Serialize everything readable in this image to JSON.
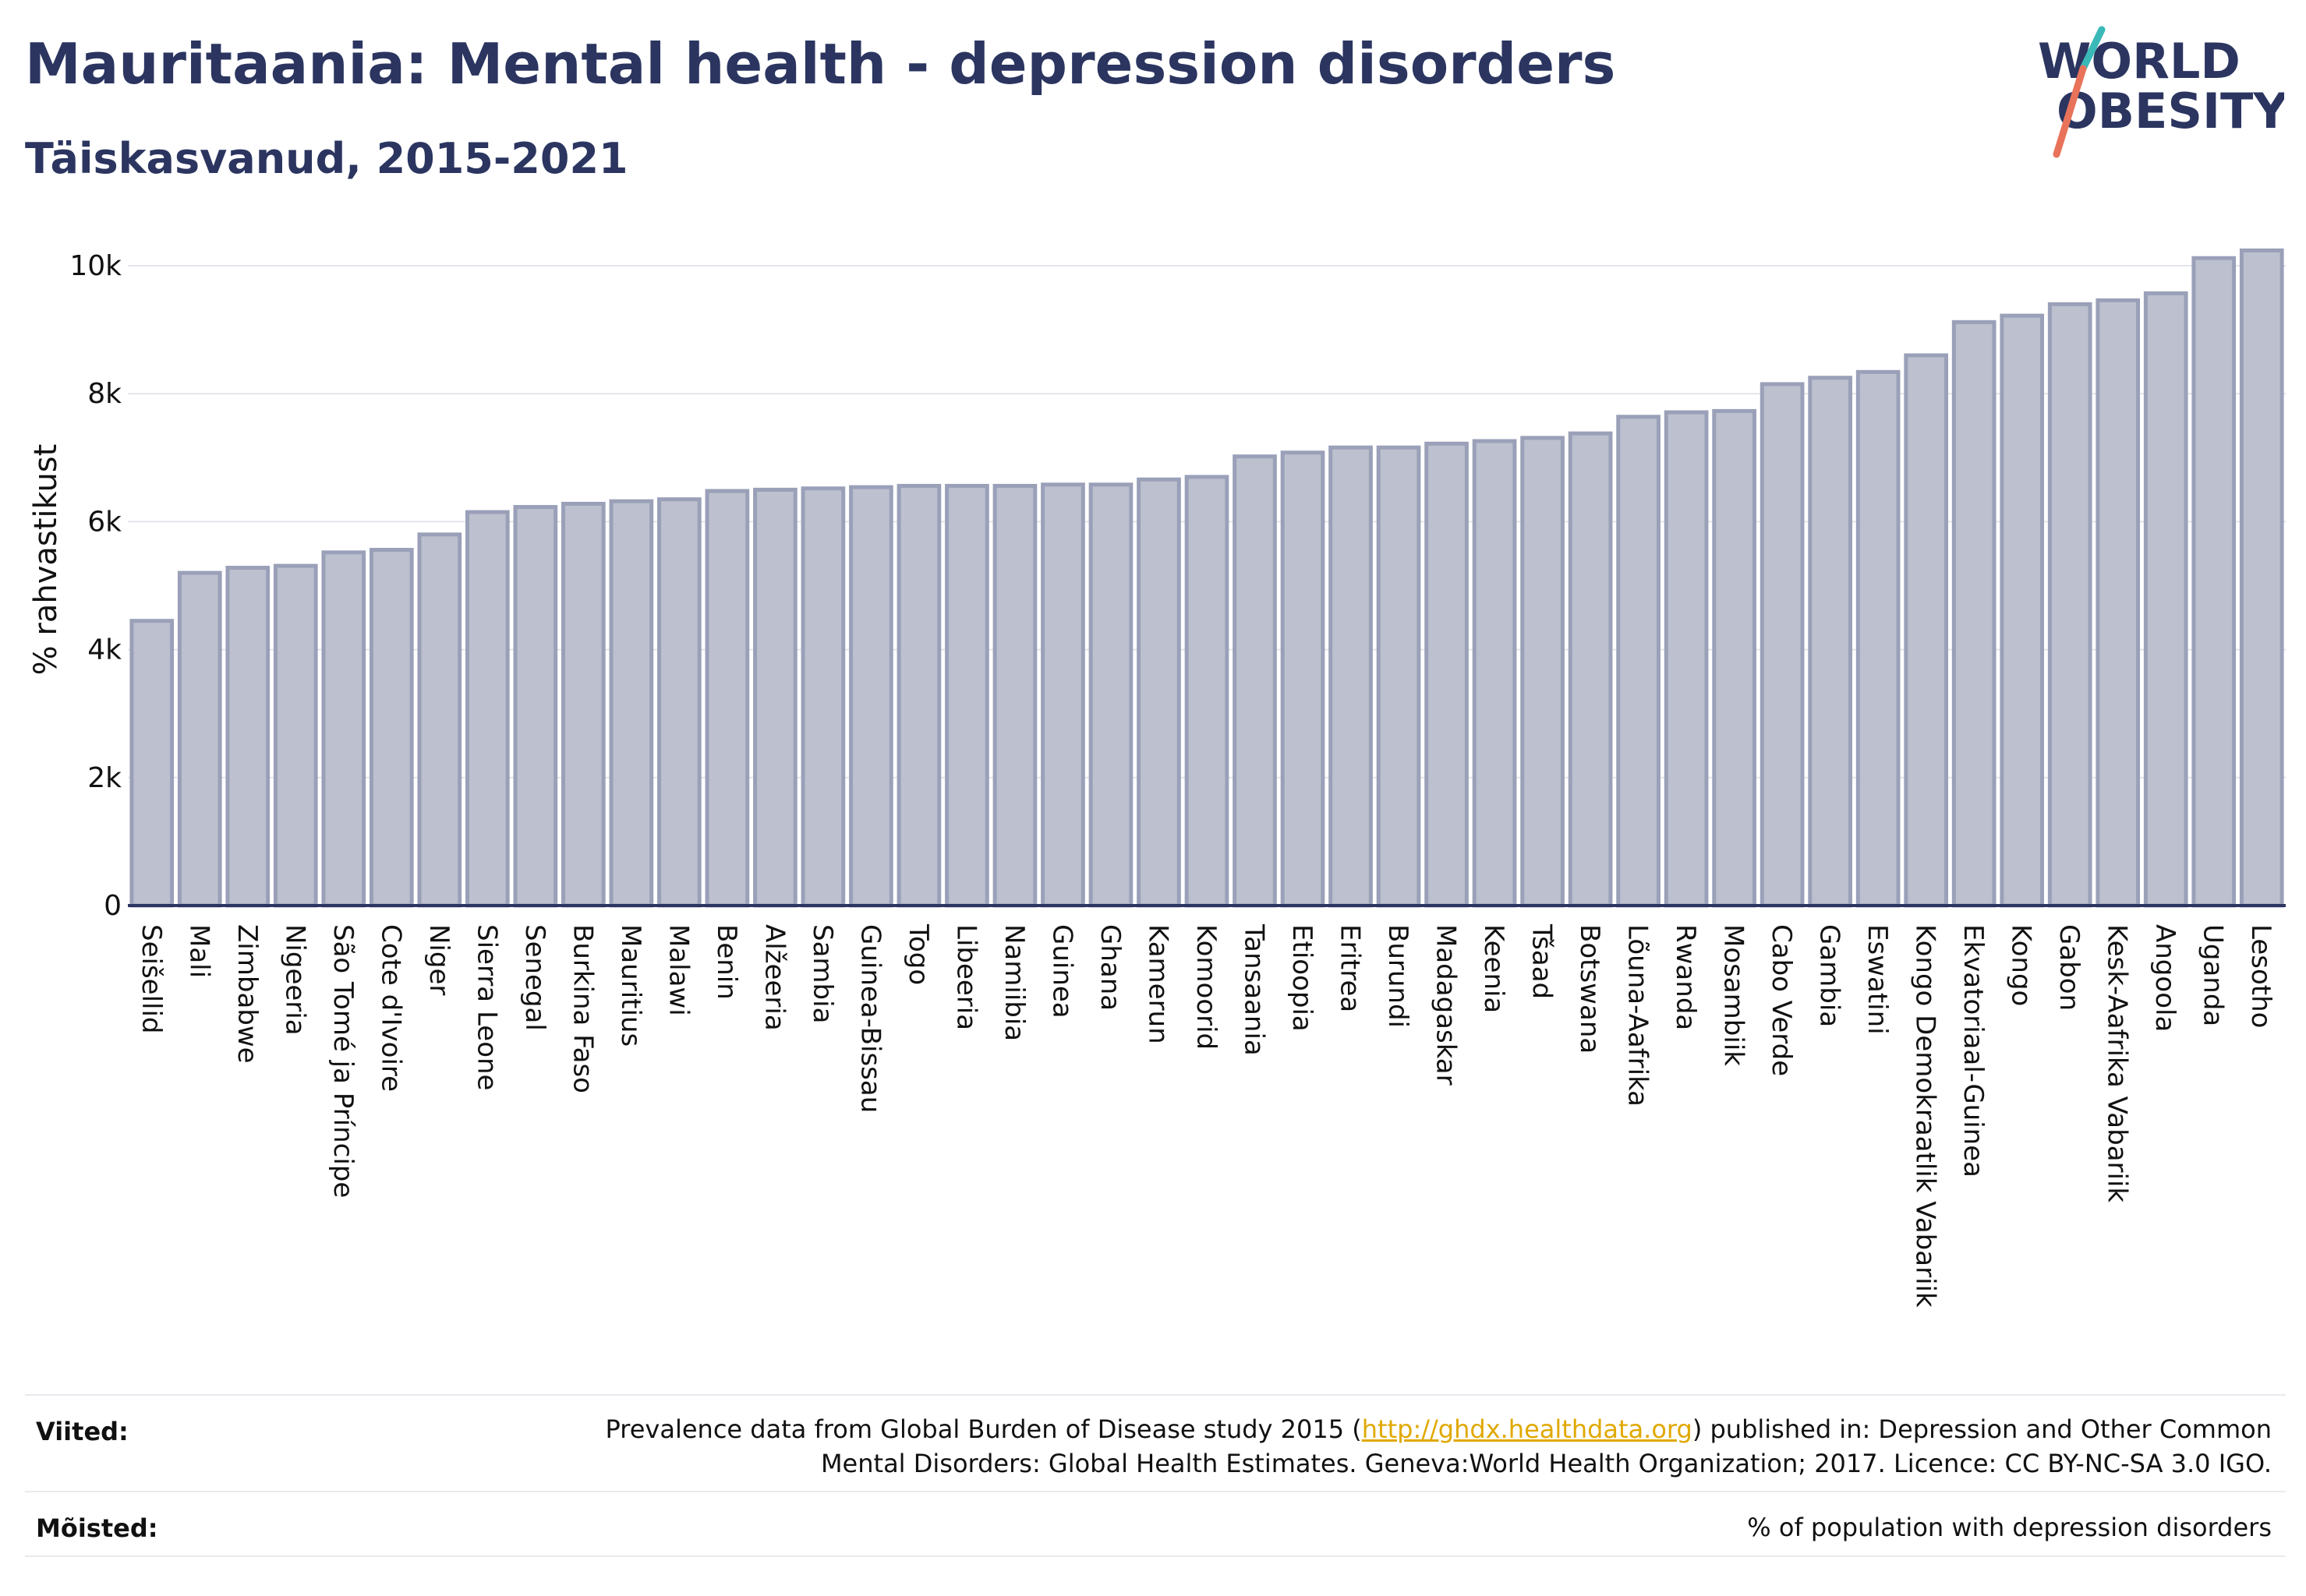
{
  "header": {
    "title": "Mauritaania: Mental health - depression disorders",
    "subtitle": "Täiskasvanud, 2015-2021"
  },
  "logo": {
    "line1": "WORLD",
    "line2": "OBESITY",
    "text_color": "#2b3560",
    "slash_top_color": "#3bb8b8",
    "slash_bottom_color": "#e8735a"
  },
  "chart_data": {
    "type": "bar",
    "title": "Mauritaania: Mental health - depression disorders",
    "subtitle": "Täiskasvanud, 2015-2021",
    "xlabel": "",
    "ylabel": "% rahvastikust",
    "ylim": [
      0,
      10500
    ],
    "yticks": [
      0,
      2000,
      4000,
      6000,
      8000,
      10000
    ],
    "ytick_labels": [
      "0",
      "2k",
      "4k",
      "6k",
      "8k",
      "10k"
    ],
    "grid": true,
    "bar_color": "#bcc0cf",
    "bar_edge_color": "#9aa0b8",
    "categories": [
      "Seišellid",
      "Mali",
      "Zimbabwe",
      "Nigeeria",
      "São Tomé ja Príncipe",
      "Cote d'Ivoire",
      "Niger",
      "Sierra Leone",
      "Senegal",
      "Burkina Faso",
      "Mauritius",
      "Malawi",
      "Benin",
      "Alžeeria",
      "Sambia",
      "Guinea-Bissau",
      "Togo",
      "Libeeria",
      "Namiibia",
      "Guinea",
      "Ghana",
      "Kamerun",
      "Komoorid",
      "Tansaania",
      "Etioopia",
      "Eritrea",
      "Burundi",
      "Madagaskar",
      "Keenia",
      "Tšaad",
      "Botswana",
      "Lõuna-Aafrika",
      "Rwanda",
      "Mosambiik",
      "Cabo Verde",
      "Gambia",
      "Eswatini",
      "Kongo Demokraatlik Vabariik",
      "Ekvatoriaal-Guinea",
      "Kongo",
      "Gabon",
      "Kesk-Aafrika Vabariik",
      "Angoola",
      "Uganda",
      "Lesotho"
    ],
    "values": [
      4450,
      5200,
      5280,
      5310,
      5520,
      5560,
      5800,
      6150,
      6230,
      6280,
      6320,
      6350,
      6480,
      6500,
      6520,
      6540,
      6560,
      6560,
      6560,
      6580,
      6580,
      6660,
      6700,
      7020,
      7080,
      7160,
      7160,
      7220,
      7260,
      7310,
      7380,
      7640,
      7710,
      7730,
      8150,
      8250,
      8340,
      8600,
      9120,
      9220,
      9400,
      9460,
      9570,
      10120,
      10240
    ]
  },
  "footer": {
    "sources_label": "Viited:",
    "sources_text_before": "Prevalence data from Global Burden of Disease study 2015 (",
    "sources_link": "http://ghdx.healthdata.org",
    "sources_text_after": ") published in: Depression and Other Common",
    "sources_text_line2": "Mental Disorders: Global Health Estimates. Geneva:World Health Organization; 2017. Licence: CC BY-NC-SA 3.0 IGO.",
    "definitions_label": "Mõisted:",
    "definitions_text": "% of population with depression disorders",
    "link_color": "#e0a800"
  }
}
